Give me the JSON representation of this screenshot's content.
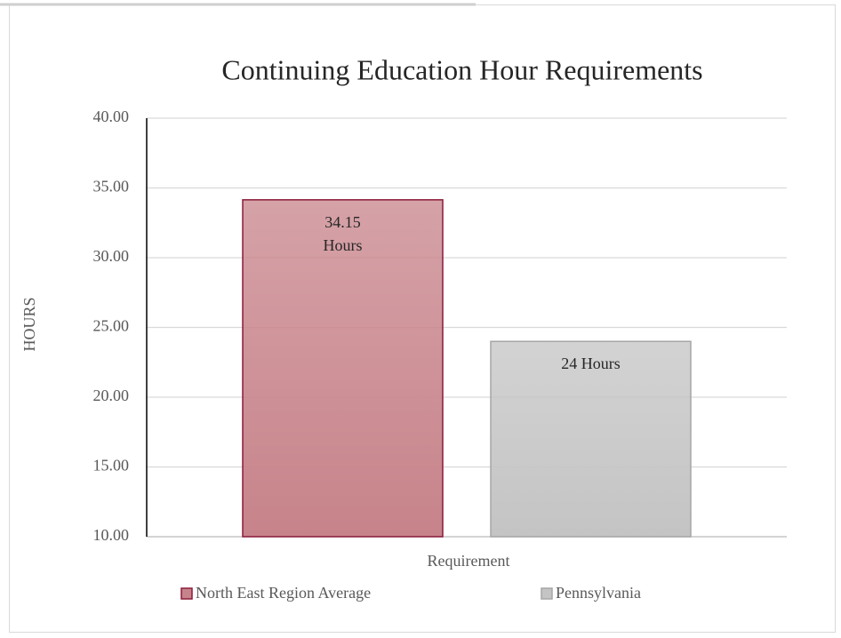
{
  "chart_data": {
    "type": "bar",
    "title": "Continuing Education Hour Requirements",
    "y_label": "HOURS",
    "x_label": "Requirement",
    "categories": [
      "Requirement"
    ],
    "series": [
      {
        "name": "North East Region Average",
        "color": "#c7838a",
        "border": "#8b1a3a",
        "values": [
          34.15
        ],
        "value_labels": [
          "34.15 Hours"
        ]
      },
      {
        "name": "Pennsylvania",
        "color": "#c4c4c4",
        "border": "#a6a6a6",
        "values": [
          24
        ],
        "value_labels": [
          "24 Hours"
        ]
      }
    ],
    "ylim": [
      10,
      40
    ],
    "yticks": [
      {
        "value": 10,
        "label": "10.00"
      },
      {
        "value": 15,
        "label": "15.00"
      },
      {
        "value": 20,
        "label": "20.00"
      },
      {
        "value": 25,
        "label": "25.00"
      },
      {
        "value": 30,
        "label": "30.00"
      },
      {
        "value": 35,
        "label": "35.00"
      },
      {
        "value": 40,
        "label": "40.00"
      }
    ],
    "grid": true,
    "legend": "bottom"
  }
}
